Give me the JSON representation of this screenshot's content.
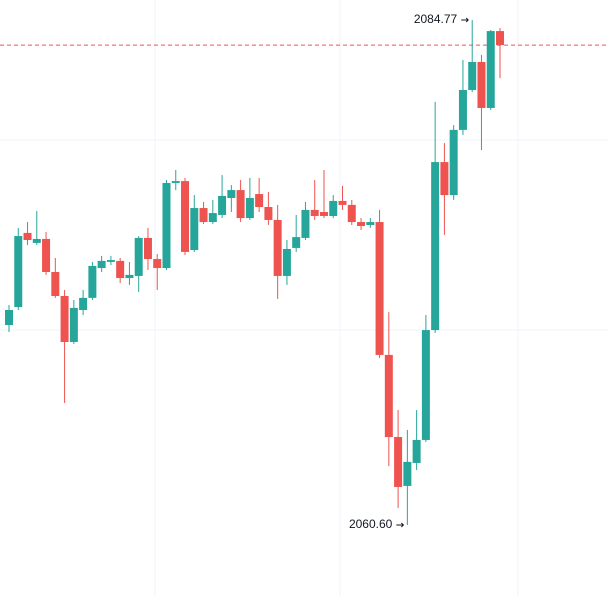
{
  "chart_data": {
    "type": "candlestick",
    "up_color": "#26a69a",
    "down_color": "#ef5350",
    "high_label": "2084.77",
    "low_label": "2060.60",
    "open": [
      2070.17,
      2071.03,
      2074.58,
      2074.1,
      2074.29,
      2072.71,
      2071.56,
      2069.36,
      2070.89,
      2071.47,
      2072.9,
      2073.19,
      2073.24,
      2072.42,
      2072.52,
      2074.34,
      2073.33,
      2072.9,
      2076.97,
      2077.06,
      2073.76,
      2075.77,
      2075.1,
      2075.44,
      2076.25,
      2076.63,
      2075.29,
      2076.44,
      2075.82,
      2075.2,
      2072.52,
      2073.86,
      2074.34,
      2075.68,
      2075.58,
      2075.39,
      2076.11,
      2075.92,
      2075.1,
      2074.96,
      2075.1,
      2068.74,
      2064.81,
      2062.47,
      2063.57,
      2064.67,
      2069.93,
      2077.97,
      2076.39,
      2079.51,
      2081.42,
      2082.76,
      2080.56,
      2084.24
    ],
    "high": [
      2071.13,
      2074.82,
      2075.1,
      2075.63,
      2074.62,
      2073.38,
      2071.85,
      2071.37,
      2071.85,
      2073.19,
      2073.48,
      2073.48,
      2073.38,
      2073.19,
      2074.43,
      2074.82,
      2073.57,
      2077.11,
      2077.59,
      2077.21,
      2076.39,
      2076.06,
      2076.16,
      2077.35,
      2076.87,
      2077.11,
      2077.21,
      2077.21,
      2076.54,
      2075.92,
      2074.24,
      2075.44,
      2076.06,
      2077.11,
      2077.59,
      2076.39,
      2076.83,
      2076.16,
      2075.29,
      2075.29,
      2075.68,
      2070.79,
      2066.1,
      2065.15,
      2066.1,
      2070.65,
      2080.85,
      2078.88,
      2079.74,
      2082.86,
      2084.77,
      2083.1,
      2084.29,
      2084.39
    ],
    "low": [
      2069.84,
      2070.89,
      2074.0,
      2074.0,
      2072.57,
      2071.47,
      2066.44,
      2069.26,
      2070.65,
      2071.37,
      2072.71,
      2073.04,
      2072.18,
      2072.09,
      2071.75,
      2072.81,
      2071.85,
      2072.81,
      2076.63,
      2073.52,
      2073.67,
      2075.01,
      2075.01,
      2075.29,
      2075.58,
      2075.1,
      2075.2,
      2075.58,
      2074.96,
      2071.42,
      2072.09,
      2073.67,
      2074.24,
      2075.2,
      2075.29,
      2075.29,
      2075.68,
      2074.96,
      2074.72,
      2074.82,
      2068.59,
      2063.42,
      2061.41,
      2060.6,
      2063.23,
      2064.57,
      2069.79,
      2074.48,
      2076.16,
      2079.27,
      2081.32,
      2078.55,
      2080.46,
      2081.99
    ],
    "close": [
      2070.89,
      2074.43,
      2074.24,
      2074.29,
      2072.71,
      2071.56,
      2069.36,
      2070.99,
      2071.47,
      2073.0,
      2073.24,
      2073.28,
      2072.42,
      2072.57,
      2074.34,
      2073.33,
      2072.9,
      2076.97,
      2077.06,
      2073.67,
      2075.77,
      2075.1,
      2075.53,
      2076.35,
      2076.63,
      2075.29,
      2076.25,
      2075.82,
      2075.2,
      2072.52,
      2073.81,
      2074.38,
      2075.68,
      2075.39,
      2075.39,
      2076.11,
      2075.92,
      2075.1,
      2074.91,
      2075.1,
      2068.74,
      2064.81,
      2062.42,
      2063.62,
      2064.67,
      2069.93,
      2077.97,
      2076.39,
      2079.51,
      2081.42,
      2082.76,
      2080.56,
      2084.24,
      2083.57
    ]
  }
}
